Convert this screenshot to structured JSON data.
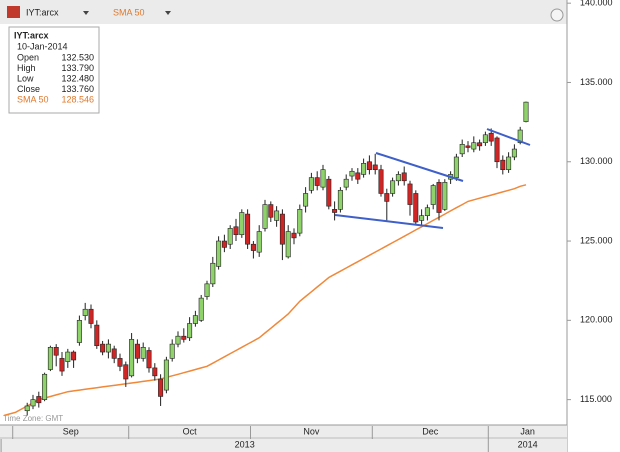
{
  "toolbar": {
    "symbol": "IYT:arcx",
    "indicator": "SMA 50"
  },
  "info": {
    "symbol": "IYT:arcx",
    "date": "10-Jan-2014",
    "rows": [
      {
        "label": "Open",
        "value": "132.530"
      },
      {
        "label": "High",
        "value": "133.790"
      },
      {
        "label": "Low",
        "value": "132.480"
      },
      {
        "label": "Close",
        "value": "133.760"
      },
      {
        "label": "SMA 50",
        "value": "128.546"
      }
    ]
  },
  "footer_note": "Time Zone: GMT",
  "chart_data": {
    "type": "candlestick",
    "categories": [
      null,
      null,
      "Sep",
      null,
      null,
      null,
      null,
      null,
      null,
      null,
      null,
      null,
      null,
      null,
      null,
      null,
      null,
      null,
      null,
      null,
      null,
      null,
      "Oct",
      null,
      null,
      null,
      null,
      null,
      null,
      null,
      null,
      null,
      null,
      null,
      null,
      null,
      null,
      null,
      null,
      null,
      null,
      null,
      null,
      "Nov",
      null,
      null,
      null,
      null,
      null,
      null,
      null,
      null,
      null,
      null,
      null,
      null,
      null,
      null,
      null,
      null,
      null,
      null,
      null,
      null,
      "Dec",
      null,
      null,
      null,
      null,
      null,
      null,
      null,
      null,
      null,
      null,
      null,
      null,
      null,
      null,
      null,
      null,
      null,
      null,
      null,
      "Jan",
      null,
      null,
      null,
      null,
      null,
      null
    ],
    "year_labels": [
      "2013",
      null,
      null,
      null,
      null,
      null,
      null,
      null,
      null,
      null,
      null,
      null,
      null,
      null,
      null,
      null,
      null,
      null,
      null,
      null,
      null,
      null,
      null,
      null,
      null,
      null,
      null,
      null,
      null,
      null,
      null,
      null,
      null,
      null,
      null,
      null,
      null,
      null,
      null,
      null,
      null,
      null,
      null,
      null,
      null,
      null,
      null,
      null,
      null,
      null,
      null,
      null,
      null,
      null,
      null,
      null,
      null,
      null,
      null,
      null,
      null,
      null,
      null,
      null,
      null,
      null,
      null,
      null,
      null,
      null,
      null,
      null,
      null,
      null,
      null,
      null,
      null,
      null,
      null,
      null,
      null,
      null,
      null,
      null,
      "2014",
      null,
      null,
      null,
      null,
      null,
      null
    ],
    "open": [
      null,
      null,
      null,
      null,
      114.3,
      114.6,
      115.2,
      115.0,
      116.9,
      118.3,
      117.6,
      117.4,
      118.0,
      118.6,
      120.3,
      120.7,
      119.7,
      118.5,
      118.0,
      118.2,
      117.6,
      117.2,
      116.5,
      118.5,
      117.6,
      118.1,
      117.0,
      116.3,
      115.6,
      117.6,
      118.5,
      119.0,
      118.9,
      119.8,
      120.0,
      121.5,
      122.3,
      123.4,
      125.0,
      124.8,
      125.9,
      125.4,
      126.7,
      124.8,
      124.3,
      125.8,
      127.3,
      126.3,
      126.7,
      124.0,
      125.5,
      125.5,
      127.2,
      128.2,
      129.0,
      128.4,
      128.9,
      127.0,
      127.0,
      128.4,
      129.1,
      129.3,
      129.2,
      130.0,
      129.8,
      129.5,
      128.0,
      128.0,
      128.8,
      129.3,
      128.6,
      128.0,
      126.3,
      126.6,
      127.3,
      128.7,
      127.0,
      128.9,
      129.0,
      130.5,
      131.0,
      130.8,
      131.2,
      131.2,
      131.8,
      131.5,
      130.1,
      129.5,
      130.3,
      131.2,
      132.53
    ],
    "high": [
      null,
      null,
      null,
      null,
      114.8,
      115.3,
      115.5,
      116.7,
      118.4,
      118.5,
      118,
      118.2,
      118.1,
      120.3,
      121.1,
      121,
      120,
      118.7,
      118.8,
      118.4,
      117.9,
      117.4,
      119.2,
      118.8,
      118.6,
      118.3,
      117.3,
      116.6,
      117.7,
      118.8,
      119.3,
      119.5,
      120.2,
      120.6,
      121.6,
      122.5,
      124.0,
      125.3,
      125.4,
      126.0,
      126.4,
      127.0,
      127.0,
      125.0,
      126.0,
      127.6,
      127.5,
      127.2,
      127.0,
      126.0,
      125.8,
      127.3,
      128.4,
      129.3,
      129.4,
      129.8,
      129.1,
      127.5,
      128.4,
      129.2,
      129.6,
      129.6,
      130.2,
      130.4,
      130.5,
      129.8,
      128.3,
      129.0,
      129.4,
      129.7,
      128.8,
      128.2,
      127.0,
      127.3,
      128.6,
      128.9,
      128.9,
      129.4,
      130.5,
      131.4,
      131.3,
      131.6,
      131.4,
      131.9,
      132.1,
      131.6,
      130.4,
      130.6,
      131.1,
      132.2,
      133.79
    ],
    "low": [
      null,
      null,
      null,
      null,
      114.0,
      114.4,
      114.5,
      114.9,
      116.8,
      117.1,
      116.5,
      117,
      117.0,
      118.4,
      120.0,
      119.5,
      118.2,
      117.8,
      117.6,
      117.3,
      116.8,
      115.8,
      116.4,
      117.3,
      117.4,
      116.7,
      116.2,
      114.6,
      115.4,
      117.4,
      118.3,
      118.6,
      118.7,
      119.6,
      119.9,
      121.3,
      122.1,
      123.2,
      124.3,
      124.5,
      125.0,
      125.2,
      124.5,
      123.9,
      124.0,
      125.6,
      126.2,
      125.9,
      123.8,
      123.9,
      124.8,
      125.3,
      126.8,
      128.0,
      128.2,
      128.2,
      127.0,
      126.3,
      126.8,
      128.2,
      128.8,
      128.6,
      129.0,
      129.2,
      129.2,
      127.8,
      126.3,
      127.8,
      128.5,
      128.5,
      126.6,
      126.0,
      126.0,
      126.3,
      127.0,
      126.3,
      126.9,
      128.6,
      128.8,
      130.3,
      130.6,
      130.6,
      130.7,
      131.0,
      131.0,
      129.6,
      129.2,
      129.3,
      130.1,
      131.1,
      132.48
    ],
    "close": [
      null,
      null,
      null,
      null,
      114.6,
      115.0,
      114.8,
      116.6,
      118.3,
      117.8,
      116.8,
      118,
      117.5,
      120.0,
      120.7,
      119.8,
      118.4,
      118.0,
      118.5,
      117.6,
      117.1,
      116.3,
      118.8,
      117.6,
      118.3,
      117.0,
      116.5,
      115.2,
      117.5,
      118.5,
      119.0,
      118.8,
      119.8,
      120.3,
      121.4,
      122.3,
      123.6,
      125.0,
      124.6,
      125.8,
      125.4,
      126.8,
      124.8,
      124.4,
      125.6,
      127.3,
      126.5,
      126.9,
      124.8,
      125.6,
      125.2,
      127.0,
      128.0,
      129.0,
      128.5,
      129.5,
      127.2,
      126.8,
      128.2,
      128.9,
      129.4,
      128.9,
      129.9,
      129.5,
      129.5,
      128.0,
      127.5,
      128.8,
      129.2,
      128.8,
      127.3,
      126.2,
      126.6,
      127.1,
      128.5,
      126.8,
      128.7,
      129.2,
      130.3,
      131.1,
      130.9,
      131.2,
      131.0,
      131.7,
      131.3,
      130.0,
      129.5,
      130.3,
      130.8,
      132.0,
      133.76
    ],
    "up_color": "#8fd16b",
    "down_color": "#d02525",
    "sma": {
      "name": "SMA 50",
      "color": "#f0883a",
      "values": [
        114.0,
        114.1,
        114.2,
        114.4,
        114.6,
        114.8,
        115.0,
        115.1,
        115.2,
        115.3,
        115.4,
        115.5,
        115.55,
        115.6,
        115.65,
        115.7,
        115.75,
        115.8,
        115.85,
        115.9,
        115.95,
        116.0,
        116.05,
        116.1,
        116.15,
        116.2,
        116.25,
        116.3,
        116.4,
        116.5,
        116.6,
        116.7,
        116.8,
        116.9,
        117.0,
        117.1,
        117.3,
        117.5,
        117.7,
        117.9,
        118.1,
        118.3,
        118.5,
        118.7,
        118.9,
        119.2,
        119.5,
        119.8,
        120.1,
        120.4,
        120.8,
        121.2,
        121.5,
        121.8,
        122.1,
        122.4,
        122.7,
        122.9,
        123.1,
        123.3,
        123.5,
        123.7,
        123.9,
        124.1,
        124.3,
        124.5,
        124.7,
        124.9,
        125.1,
        125.3,
        125.5,
        125.7,
        125.9,
        126.1,
        126.3,
        126.5,
        126.7,
        126.9,
        127.1,
        127.3,
        127.5,
        127.6,
        127.7,
        127.8,
        127.9,
        128.0,
        128.1,
        128.2,
        128.3,
        128.45,
        128.546
      ]
    },
    "ylim": [
      113.4,
      140.2
    ],
    "yticks": [
      {
        "value": 115,
        "label": "115.000"
      },
      {
        "value": 120,
        "label": "120.000"
      },
      {
        "value": 125,
        "label": "125.000"
      },
      {
        "value": 130,
        "label": "130.000"
      },
      {
        "value": 135,
        "label": "135.000"
      },
      {
        "value": 140,
        "label": "140.000"
      }
    ]
  }
}
